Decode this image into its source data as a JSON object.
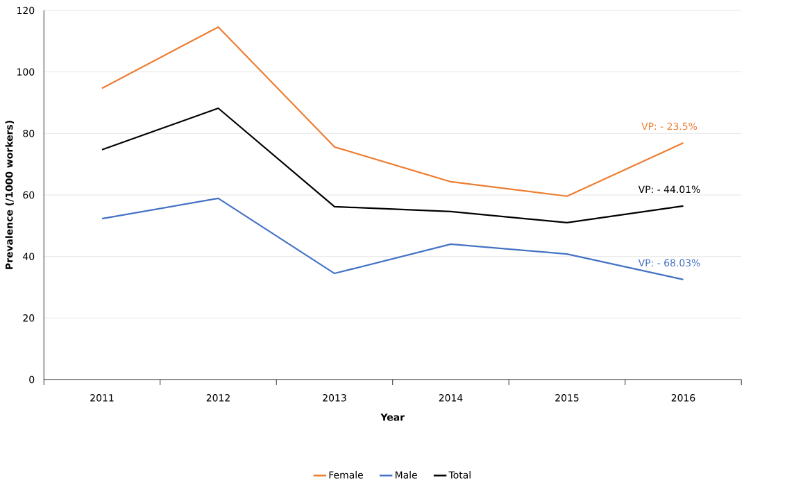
{
  "chart_data": {
    "type": "line",
    "xlabel": "Year",
    "ylabel": "Prevalence (/1000 workers)",
    "categories": [
      "2011",
      "2012",
      "2013",
      "2014",
      "2015",
      "2016"
    ],
    "series": [
      {
        "name": "Female",
        "color": "#ed7d31",
        "values": [
          94.7,
          114.6,
          75.6,
          64.3,
          59.6,
          76.9
        ]
      },
      {
        "name": "Male",
        "color": "#4472c4",
        "values": [
          52.3,
          58.9,
          34.5,
          44.0,
          40.8,
          32.5
        ]
      },
      {
        "name": "Total",
        "color": "#000000",
        "values": [
          74.7,
          88.2,
          56.2,
          54.6,
          51.0,
          56.4
        ]
      }
    ],
    "annotations": [
      "VP:   - 23.5%",
      "VP:   - 68.03%",
      "VP:   - 44.01%"
    ],
    "ylim": [
      0,
      120
    ],
    "yticks": [
      0,
      20,
      40,
      60,
      80,
      100,
      120
    ],
    "grid": "y",
    "legend": "bottom",
    "marker": "none",
    "line_style": "solid"
  }
}
